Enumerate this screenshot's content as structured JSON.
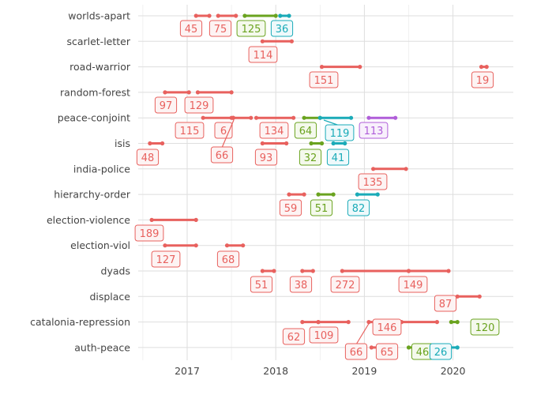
{
  "chart_data": {
    "type": "dumbbell-timeline",
    "title": "",
    "xlabel": "",
    "ylabel": "",
    "xlim": [
      2016.5,
      2020.6
    ],
    "x_ticks": [
      2017,
      2018,
      2019,
      2020
    ],
    "x_tick_labels": [
      "2017",
      "2018",
      "2019",
      "2020"
    ],
    "grid": true,
    "legend": "none",
    "categories": [
      "worlds-apart",
      "scarlet-letter",
      "road-warrior",
      "random-forest",
      "peace-conjoint",
      "isis",
      "india-police",
      "hierarchy-order",
      "election-violence",
      "election-viol",
      "dyads",
      "displace",
      "catalonia-repression",
      "auth-peace"
    ],
    "colors": {
      "red": "#e8615e",
      "green": "#6aa31f",
      "teal": "#1aabb8",
      "purple": "#b05ed9"
    },
    "segments": [
      {
        "project": "worlds-apart",
        "start": 2017.1,
        "end": 2017.25,
        "label": "45",
        "color": "red"
      },
      {
        "project": "worlds-apart",
        "start": 2017.35,
        "end": 2017.55,
        "label": "75",
        "color": "red"
      },
      {
        "project": "worlds-apart",
        "start": 2017.65,
        "end": 2018.0,
        "label": "125",
        "color": "green"
      },
      {
        "project": "worlds-apart",
        "start": 2018.05,
        "end": 2018.15,
        "label": "36",
        "color": "teal"
      },
      {
        "project": "scarlet-letter",
        "start": 2017.85,
        "end": 2018.18,
        "label": "114",
        "color": "red"
      },
      {
        "project": "road-warrior",
        "start": 2018.52,
        "end": 2018.95,
        "label": "151",
        "color": "red"
      },
      {
        "project": "road-warrior",
        "start": 2020.32,
        "end": 2020.38,
        "label": "19",
        "color": "red"
      },
      {
        "project": "random-forest",
        "start": 2016.75,
        "end": 2017.02,
        "label": "97",
        "color": "red"
      },
      {
        "project": "random-forest",
        "start": 2017.12,
        "end": 2017.5,
        "label": "129",
        "color": "red"
      },
      {
        "project": "peace-conjoint",
        "start": 2017.18,
        "end": 2017.5,
        "label": "115",
        "color": "red"
      },
      {
        "project": "peace-conjoint",
        "start": 2017.52,
        "end": 2017.72,
        "label": "6",
        "color": "red"
      },
      {
        "project": "peace-conjoint",
        "start": 2017.78,
        "end": 2018.2,
        "label": "134",
        "color": "red"
      },
      {
        "project": "peace-conjoint",
        "start": 2017.52,
        "end": 2017.52,
        "label": "66",
        "color": "red"
      },
      {
        "project": "peace-conjoint",
        "start": 2018.32,
        "end": 2018.5,
        "label": "64",
        "color": "green"
      },
      {
        "project": "peace-conjoint",
        "start": 2018.5,
        "end": 2018.85,
        "label": "119",
        "color": "teal"
      },
      {
        "project": "peace-conjoint",
        "start": 2019.05,
        "end": 2019.35,
        "label": "113",
        "color": "purple"
      },
      {
        "project": "isis",
        "start": 2016.58,
        "end": 2016.72,
        "label": "48",
        "color": "red"
      },
      {
        "project": "isis",
        "start": 2017.85,
        "end": 2018.12,
        "label": "93",
        "color": "red"
      },
      {
        "project": "isis",
        "start": 2018.4,
        "end": 2018.52,
        "label": "32",
        "color": "green"
      },
      {
        "project": "isis",
        "start": 2018.65,
        "end": 2018.78,
        "label": "41",
        "color": "teal"
      },
      {
        "project": "india-police",
        "start": 2019.1,
        "end": 2019.47,
        "label": "135",
        "color": "red"
      },
      {
        "project": "hierarchy-order",
        "start": 2018.15,
        "end": 2018.32,
        "label": "59",
        "color": "red"
      },
      {
        "project": "hierarchy-order",
        "start": 2018.48,
        "end": 2018.65,
        "label": "51",
        "color": "green"
      },
      {
        "project": "hierarchy-order",
        "start": 2018.92,
        "end": 2019.15,
        "label": "82",
        "color": "teal"
      },
      {
        "project": "election-violence",
        "start": 2016.6,
        "end": 2017.1,
        "label": "189",
        "color": "red"
      },
      {
        "project": "election-viol",
        "start": 2016.75,
        "end": 2017.1,
        "label": "127",
        "color": "red"
      },
      {
        "project": "election-viol",
        "start": 2017.45,
        "end": 2017.63,
        "label": "68",
        "color": "red"
      },
      {
        "project": "dyads",
        "start": 2017.85,
        "end": 2017.98,
        "label": "51",
        "color": "red"
      },
      {
        "project": "dyads",
        "start": 2018.3,
        "end": 2018.42,
        "label": "38",
        "color": "red"
      },
      {
        "project": "dyads",
        "start": 2018.75,
        "end": 2019.5,
        "label": "272",
        "color": "red"
      },
      {
        "project": "dyads",
        "start": 2019.5,
        "end": 2019.95,
        "label": "149",
        "color": "red"
      },
      {
        "project": "displace",
        "start": 2020.05,
        "end": 2020.3,
        "label": "87",
        "color": "red"
      },
      {
        "project": "catalonia-repression",
        "start": 2018.3,
        "end": 2018.48,
        "label": "62",
        "color": "red"
      },
      {
        "project": "catalonia-repression",
        "start": 2018.48,
        "end": 2018.82,
        "label": "109",
        "color": "red"
      },
      {
        "project": "catalonia-repression",
        "start": 2019.05,
        "end": 2019.18,
        "label": "66",
        "color": "red"
      },
      {
        "project": "catalonia-repression",
        "start": 2019.18,
        "end": 2019.38,
        "label": "146",
        "color": "red"
      },
      {
        "project": "catalonia-repression",
        "start": 2019.42,
        "end": 2019.82,
        "label": "146",
        "color": "red"
      },
      {
        "project": "catalonia-repression",
        "start": 2019.98,
        "end": 2020.05,
        "label": "120",
        "color": "green"
      },
      {
        "project": "auth-peace",
        "start": 2019.08,
        "end": 2019.22,
        "label": "65",
        "color": "red"
      },
      {
        "project": "auth-peace",
        "start": 2019.5,
        "end": 2019.75,
        "label": "46",
        "color": "green"
      },
      {
        "project": "auth-peace",
        "start": 2019.85,
        "end": 2020.05,
        "label": "26",
        "color": "teal"
      }
    ]
  }
}
